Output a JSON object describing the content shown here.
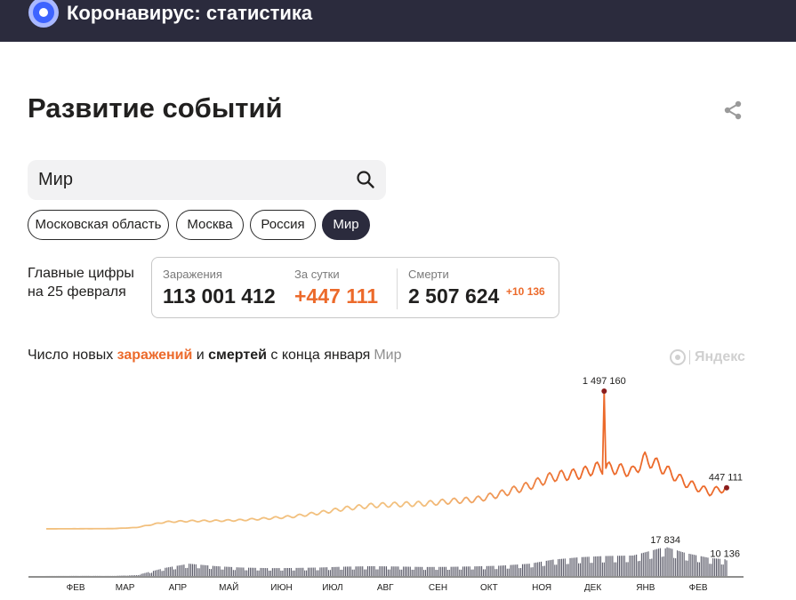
{
  "header": {
    "app_title": "Коронавирус: статистика"
  },
  "page": {
    "title": "Развитие событий"
  },
  "search": {
    "value": "Мир"
  },
  "regions": [
    {
      "label": "Московская область",
      "active": false
    },
    {
      "label": "Москва",
      "active": false
    },
    {
      "label": "Россия",
      "active": false
    },
    {
      "label": "Мир",
      "active": true
    }
  ],
  "key_figures": {
    "caption_line1": "Главные цифры",
    "caption_line2": "на 25 февраля",
    "cases_label": "Заражения",
    "cases_value": "113 001 412",
    "daily_label": "За сутки",
    "daily_value": "+447 111",
    "deaths_label": "Смерти",
    "deaths_value": "2 507 624",
    "deaths_delta": "+10 136"
  },
  "chart_caption": {
    "part1": "Число новых ",
    "infections": "заражений",
    "part2": " и ",
    "deaths": "смертей",
    "part3": " с конца января",
    "region": "Мир"
  },
  "watermark": "Яндекс",
  "colors": {
    "infections": "#ec6a2b",
    "infections_light": "#f2c07e",
    "deaths": "#2b2b3d",
    "marker": "#8b1d1d",
    "header_bg": "#2b2b3d"
  },
  "icons": {
    "share": "share-icon",
    "search": "search-icon",
    "logo": "logo-icon"
  },
  "chart_data": {
    "type": "area",
    "x_start": "2020-01-22",
    "x_end": "2021-02-25",
    "month_ticks": [
      {
        "label": "ФЕВ",
        "date": "2020-02-01"
      },
      {
        "label": "МАР",
        "date": "2020-03-01"
      },
      {
        "label": "АПР",
        "date": "2020-04-01"
      },
      {
        "label": "МАЙ",
        "date": "2020-05-01"
      },
      {
        "label": "ИЮН",
        "date": "2020-06-01"
      },
      {
        "label": "ИЮЛ",
        "date": "2020-07-01"
      },
      {
        "label": "АВГ",
        "date": "2020-08-01"
      },
      {
        "label": "СЕН",
        "date": "2020-09-01"
      },
      {
        "label": "ОКТ",
        "date": "2020-10-01"
      },
      {
        "label": "НОЯ",
        "date": "2020-11-01"
      },
      {
        "label": "ДЕК",
        "date": "2020-12-01"
      },
      {
        "label": "ЯНВ",
        "date": "2021-01-01"
      },
      {
        "label": "ФЕВ",
        "date": "2021-02-01"
      }
    ],
    "series": [
      {
        "name": "заражений",
        "type": "line",
        "points": [
          [
            "2020-01-22",
            500
          ],
          [
            "2020-02-15",
            2000
          ],
          [
            "2020-03-01",
            3000
          ],
          [
            "2020-03-15",
            15000
          ],
          [
            "2020-04-01",
            75000
          ],
          [
            "2020-04-15",
            85000
          ],
          [
            "2020-05-01",
            88000
          ],
          [
            "2020-05-15",
            95000
          ],
          [
            "2020-06-01",
            115000
          ],
          [
            "2020-06-15",
            135000
          ],
          [
            "2020-07-01",
            175000
          ],
          [
            "2020-07-15",
            220000
          ],
          [
            "2020-08-01",
            255000
          ],
          [
            "2020-08-15",
            265000
          ],
          [
            "2020-09-01",
            275000
          ],
          [
            "2020-09-15",
            300000
          ],
          [
            "2020-10-01",
            320000
          ],
          [
            "2020-10-15",
            380000
          ],
          [
            "2020-11-01",
            470000
          ],
          [
            "2020-11-15",
            570000
          ],
          [
            "2020-12-01",
            600000
          ],
          [
            "2020-12-10",
            660000
          ],
          [
            "2020-12-15",
            1497160
          ],
          [
            "2020-12-20",
            660000
          ],
          [
            "2021-01-01",
            620000
          ],
          [
            "2021-01-08",
            760000
          ],
          [
            "2021-01-15",
            700000
          ],
          [
            "2021-02-01",
            500000
          ],
          [
            "2021-02-15",
            400000
          ],
          [
            "2021-02-25",
            447111
          ]
        ],
        "peak": {
          "date": "2020-12-15",
          "value": 1497160,
          "label": "1 497 160"
        },
        "last": {
          "date": "2021-02-25",
          "value": 447111,
          "label": "447 111"
        }
      },
      {
        "name": "смертей",
        "type": "bar",
        "points": [
          [
            "2020-01-22",
            20
          ],
          [
            "2020-02-15",
            100
          ],
          [
            "2020-03-01",
            70
          ],
          [
            "2020-03-15",
            500
          ],
          [
            "2020-04-01",
            5000
          ],
          [
            "2020-04-15",
            7500
          ],
          [
            "2020-05-01",
            6000
          ],
          [
            "2020-05-15",
            5200
          ],
          [
            "2020-06-01",
            4800
          ],
          [
            "2020-06-15",
            4900
          ],
          [
            "2020-07-01",
            5200
          ],
          [
            "2020-07-15",
            5700
          ],
          [
            "2020-08-01",
            6000
          ],
          [
            "2020-08-15",
            5800
          ],
          [
            "2020-09-01",
            5500
          ],
          [
            "2020-09-15",
            5600
          ],
          [
            "2020-10-01",
            5900
          ],
          [
            "2020-10-15",
            6300
          ],
          [
            "2020-11-01",
            7500
          ],
          [
            "2020-11-15",
            10000
          ],
          [
            "2020-12-01",
            11500
          ],
          [
            "2020-12-15",
            12200
          ],
          [
            "2021-01-01",
            12500
          ],
          [
            "2021-01-20",
            17834
          ],
          [
            "2021-02-01",
            14000
          ],
          [
            "2021-02-15",
            11000
          ],
          [
            "2021-02-25",
            10136
          ]
        ],
        "peak": {
          "date": "2021-01-20",
          "value": 17834,
          "label": "17 834"
        },
        "last": {
          "date": "2021-02-25",
          "value": 10136,
          "label": "10 136"
        }
      }
    ]
  }
}
